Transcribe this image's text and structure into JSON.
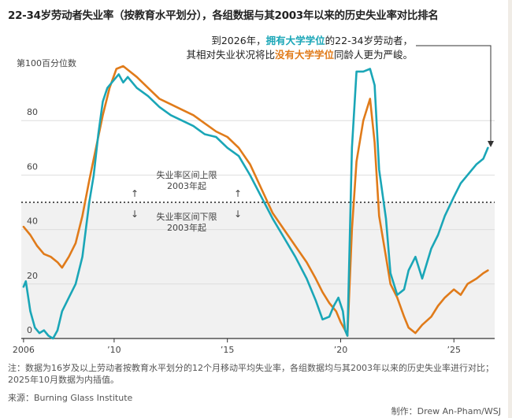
{
  "title": "22-34岁劳动者失业率（按教育水平划分），各组数据与其2003年以来的历史失业率对比排名",
  "annotation": {
    "line1_prefix": "到2026年，",
    "line1_highlight": "拥有大学学位",
    "line1_suffix": "的22-34岁劳动者，",
    "line2_prefix": "其相对失业状况将比",
    "line2_highlight": "没有大学学位",
    "line2_suffix": "同龄人更为严峻。"
  },
  "region_labels": {
    "upper_line1": "失业率区间上限",
    "upper_line2": "2003年起",
    "lower_line1": "失业率区间下限",
    "lower_line2": "2003年起",
    "arrow_up": "↑",
    "arrow_down": "↓"
  },
  "footnote": "注：数据为16岁及以上劳动者按教育水平划分的12个月移动平均失业率，各组数据均与其2003年以来的历史失业率进行对比；2025年10月数据为内插值。",
  "source": "来源：Burning Glass Institute",
  "credit": "制作：Drew An-Pham/WSJ",
  "colors": {
    "college": "#1aa6b7",
    "no_college": "#e07b1a",
    "shade": "#f1f1f1",
    "grid": "#dedede",
    "axis": "#333333"
  },
  "chart_data": {
    "type": "line",
    "title": "22-34岁劳动者失业率（按教育水平划分），各组数据与其2003年以来的历史失业率对比排名",
    "ylabel": "第100百分位数",
    "xlabel": "",
    "xlim": [
      2005.9,
      2026.8
    ],
    "ylim": [
      0,
      100
    ],
    "yticks": [
      0,
      20,
      40,
      60,
      80
    ],
    "ytick_labels": [
      "0",
      "20",
      "40",
      "60",
      "80"
    ],
    "xticks": [
      2006,
      2010,
      2015,
      2020,
      2025
    ],
    "xtick_labels": [
      "2006",
      "’10",
      "’15",
      "’20",
      "’25"
    ],
    "midline": 50,
    "grid": true,
    "shaded_band": [
      0,
      50
    ],
    "series": [
      {
        "name": "拥有大学学位",
        "x": [
          2006.0,
          2006.1,
          2006.3,
          2006.5,
          2006.7,
          2006.9,
          2007.1,
          2007.3,
          2007.5,
          2007.7,
          2008.0,
          2008.3,
          2008.6,
          2008.9,
          2009.1,
          2009.3,
          2009.5,
          2009.7,
          2010.0,
          2010.2,
          2010.4,
          2010.6,
          2011.0,
          2011.5,
          2012.0,
          2012.5,
          2013.0,
          2013.5,
          2014.0,
          2014.5,
          2015.0,
          2015.5,
          2016.0,
          2016.5,
          2017.0,
          2017.5,
          2018.0,
          2018.5,
          2018.9,
          2019.2,
          2019.5,
          2019.7,
          2019.9,
          2020.1,
          2020.2,
          2020.3,
          2020.5,
          2020.7,
          2021.0,
          2021.3,
          2021.5,
          2021.7,
          2022.0,
          2022.2,
          2022.5,
          2022.8,
          2023.0,
          2023.3,
          2023.6,
          2024.0,
          2024.3,
          2024.6,
          2025.0,
          2025.3,
          2025.6,
          2026.0,
          2026.3,
          2026.5
        ],
        "values": [
          19,
          21,
          10,
          4,
          2,
          3,
          1,
          0,
          3,
          10,
          15,
          20,
          30,
          50,
          60,
          75,
          87,
          92,
          95,
          97,
          94,
          96,
          92,
          89,
          85,
          82,
          80,
          78,
          75,
          74,
          70,
          67,
          60,
          52,
          44,
          37,
          30,
          22,
          14,
          7,
          8,
          12,
          15,
          10,
          3,
          1,
          70,
          98,
          98,
          99,
          93,
          62,
          44,
          24,
          16,
          18,
          25,
          30,
          22,
          33,
          38,
          45,
          52,
          57,
          60,
          64,
          66,
          70
        ]
      },
      {
        "name": "没有大学学位",
        "x": [
          2006.0,
          2006.3,
          2006.6,
          2006.9,
          2007.2,
          2007.5,
          2007.7,
          2008.0,
          2008.3,
          2008.6,
          2008.9,
          2009.2,
          2009.5,
          2009.8,
          2010.1,
          2010.4,
          2010.7,
          2011.0,
          2011.5,
          2012.0,
          2012.5,
          2013.0,
          2013.5,
          2014.0,
          2014.5,
          2015.0,
          2015.5,
          2016.0,
          2016.5,
          2017.0,
          2017.5,
          2018.0,
          2018.5,
          2018.9,
          2019.2,
          2019.5,
          2019.8,
          2020.0,
          2020.2,
          2020.3,
          2020.5,
          2020.7,
          2021.0,
          2021.3,
          2021.5,
          2021.7,
          2022.0,
          2022.2,
          2022.5,
          2022.8,
          2023.0,
          2023.3,
          2023.6,
          2024.0,
          2024.3,
          2024.6,
          2025.0,
          2025.3,
          2025.6,
          2026.0,
          2026.3,
          2026.5
        ],
        "values": [
          41,
          38,
          34,
          31,
          30,
          28,
          26,
          30,
          35,
          45,
          58,
          70,
          82,
          92,
          99,
          100,
          98,
          96,
          92,
          88,
          86,
          84,
          82,
          79,
          76,
          74,
          70,
          64,
          55,
          46,
          40,
          34,
          28,
          22,
          17,
          13,
          10,
          6,
          3,
          1,
          40,
          65,
          80,
          88,
          72,
          45,
          30,
          20,
          15,
          8,
          4,
          2,
          5,
          8,
          12,
          15,
          18,
          16,
          20,
          22,
          24,
          25
        ]
      }
    ]
  }
}
